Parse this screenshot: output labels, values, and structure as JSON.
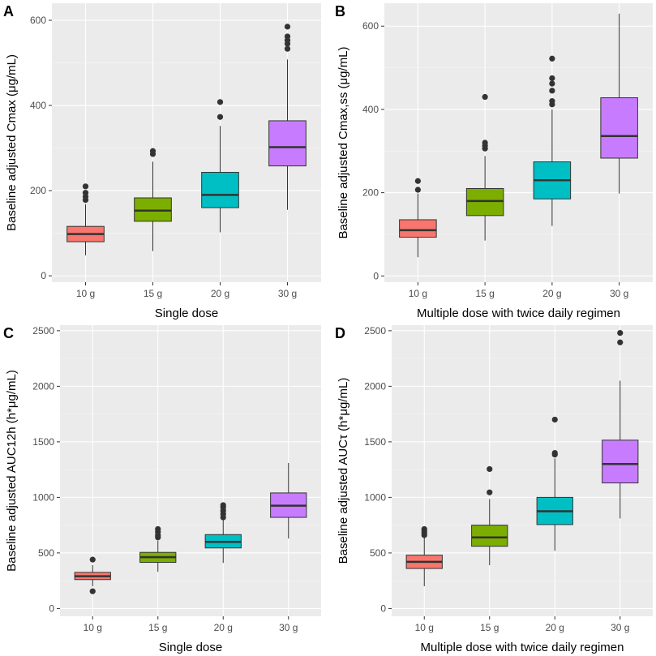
{
  "figure": {
    "colors": {
      "10 g": "#F8766D",
      "15 g": "#7CAE00",
      "20 g": "#00BFC4",
      "30 g": "#C77CFF"
    }
  },
  "chart_data": [
    {
      "panel_letter": "A",
      "type": "boxplot",
      "xlabel": "Single dose",
      "ylabel": "Baseline adjusted Cmax (μg/mL)",
      "categories": [
        "10 g",
        "15 g",
        "20 g",
        "30 g"
      ],
      "ylim": [
        -15,
        640
      ],
      "yticks": [
        0,
        200,
        400,
        600
      ],
      "boxes": [
        {
          "category": "10 g",
          "min": 48,
          "q1": 80,
          "median": 98,
          "q3": 116,
          "max": 168,
          "outliers": [
            178,
            186,
            195,
            210
          ]
        },
        {
          "category": "15 g",
          "min": 58,
          "q1": 128,
          "median": 153,
          "q3": 183,
          "max": 268,
          "outliers": [
            286,
            293
          ]
        },
        {
          "category": "20 g",
          "min": 102,
          "q1": 160,
          "median": 190,
          "q3": 243,
          "max": 352,
          "outliers": [
            373,
            408
          ]
        },
        {
          "category": "30 g",
          "min": 155,
          "q1": 258,
          "median": 302,
          "q3": 364,
          "max": 508,
          "outliers": [
            533,
            545,
            553,
            562,
            585
          ]
        }
      ]
    },
    {
      "panel_letter": "B",
      "type": "boxplot",
      "xlabel": "Multiple dose with twice daily regimen",
      "ylabel": "Baseline adjusted Cmax,ss (μg/mL)",
      "categories": [
        "10 g",
        "15 g",
        "20 g",
        "30 g"
      ],
      "ylim": [
        -15,
        655
      ],
      "yticks": [
        0,
        200,
        400,
        600
      ],
      "boxes": [
        {
          "category": "10 g",
          "min": 45,
          "q1": 93,
          "median": 110,
          "q3": 135,
          "max": 198,
          "outliers": [
            207,
            228
          ]
        },
        {
          "category": "15 g",
          "min": 85,
          "q1": 145,
          "median": 180,
          "q3": 210,
          "max": 288,
          "outliers": [
            306,
            313,
            320,
            430
          ]
        },
        {
          "category": "20 g",
          "min": 120,
          "q1": 185,
          "median": 230,
          "q3": 274,
          "max": 400,
          "outliers": [
            412,
            420,
            445,
            462,
            475,
            522
          ]
        },
        {
          "category": "30 g",
          "min": 198,
          "q1": 283,
          "median": 336,
          "q3": 428,
          "max": 630,
          "outliers": []
        }
      ]
    },
    {
      "panel_letter": "C",
      "type": "boxplot",
      "xlabel": "Single dose",
      "ylabel": "Baseline adjusted AUC12h (h*μg/mL)",
      "categories": [
        "10 g",
        "15 g",
        "20 g",
        "30 g"
      ],
      "ylim": [
        -70,
        2550
      ],
      "yticks": [
        0,
        500,
        1000,
        1500,
        2000,
        2500
      ],
      "boxes": [
        {
          "category": "10 g",
          "min": 200,
          "q1": 260,
          "median": 290,
          "q3": 325,
          "max": 390,
          "outliers": [
            155,
            440
          ]
        },
        {
          "category": "15 g",
          "min": 330,
          "q1": 415,
          "median": 462,
          "q3": 505,
          "max": 610,
          "outliers": [
            640,
            660,
            690,
            715
          ]
        },
        {
          "category": "20 g",
          "min": 410,
          "q1": 545,
          "median": 600,
          "q3": 665,
          "max": 800,
          "outliers": [
            820,
            850,
            880,
            910,
            930
          ]
        },
        {
          "category": "30 g",
          "min": 630,
          "q1": 820,
          "median": 925,
          "q3": 1040,
          "max": 1310,
          "outliers": []
        }
      ]
    },
    {
      "panel_letter": "D",
      "type": "boxplot",
      "xlabel": "Multiple dose with twice daily regimen",
      "ylabel": "Baseline adjusted AUCτ (h*μg/mL)",
      "categories": [
        "10 g",
        "15 g",
        "20 g",
        "30 g"
      ],
      "ylim": [
        -70,
        2550
      ],
      "yticks": [
        0,
        500,
        1000,
        1500,
        2000,
        2500
      ],
      "boxes": [
        {
          "category": "10 g",
          "min": 200,
          "q1": 360,
          "median": 420,
          "q3": 480,
          "max": 640,
          "outliers": [
            660,
            680,
            700,
            715
          ]
        },
        {
          "category": "15 g",
          "min": 390,
          "q1": 560,
          "median": 640,
          "q3": 750,
          "max": 985,
          "outliers": [
            1045,
            1255
          ]
        },
        {
          "category": "20 g",
          "min": 520,
          "q1": 755,
          "median": 875,
          "q3": 1000,
          "max": 1350,
          "outliers": [
            1385,
            1400,
            1700
          ]
        },
        {
          "category": "30 g",
          "min": 810,
          "q1": 1130,
          "median": 1300,
          "q3": 1515,
          "max": 2050,
          "outliers": [
            2395,
            2480
          ]
        }
      ]
    }
  ]
}
